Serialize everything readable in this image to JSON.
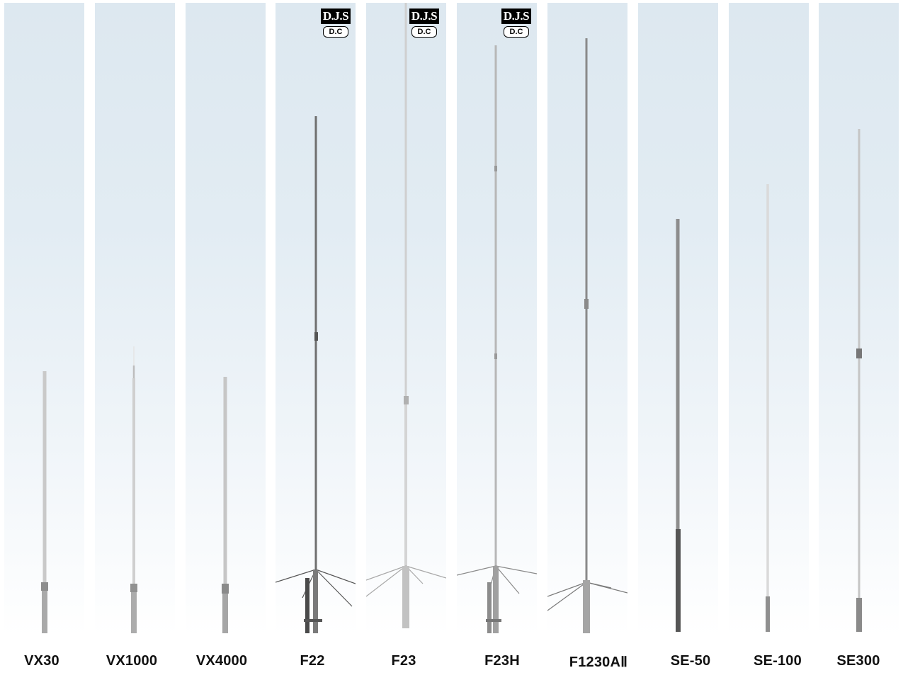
{
  "products": [
    {
      "name": "VX30"
    },
    {
      "name": "VX1000"
    },
    {
      "name": "VX4000"
    },
    {
      "name": "F22",
      "badges": {
        "top": "D.J.S",
        "bottom": "D.C"
      }
    },
    {
      "name": "F23",
      "badges": {
        "top": "D.J.S",
        "bottom": "D.C"
      }
    },
    {
      "name": "F23H",
      "badges": {
        "top": "D.J.S",
        "bottom": "D.C"
      }
    },
    {
      "name": "F1230AⅡ"
    },
    {
      "name": "SE-50"
    },
    {
      "name": "SE-100"
    },
    {
      "name": "SE300"
    }
  ],
  "colors": {
    "panel_top": "#dde8f0",
    "panel_bottom": "#ffffff",
    "label": "#111111",
    "badge": "#000000"
  }
}
